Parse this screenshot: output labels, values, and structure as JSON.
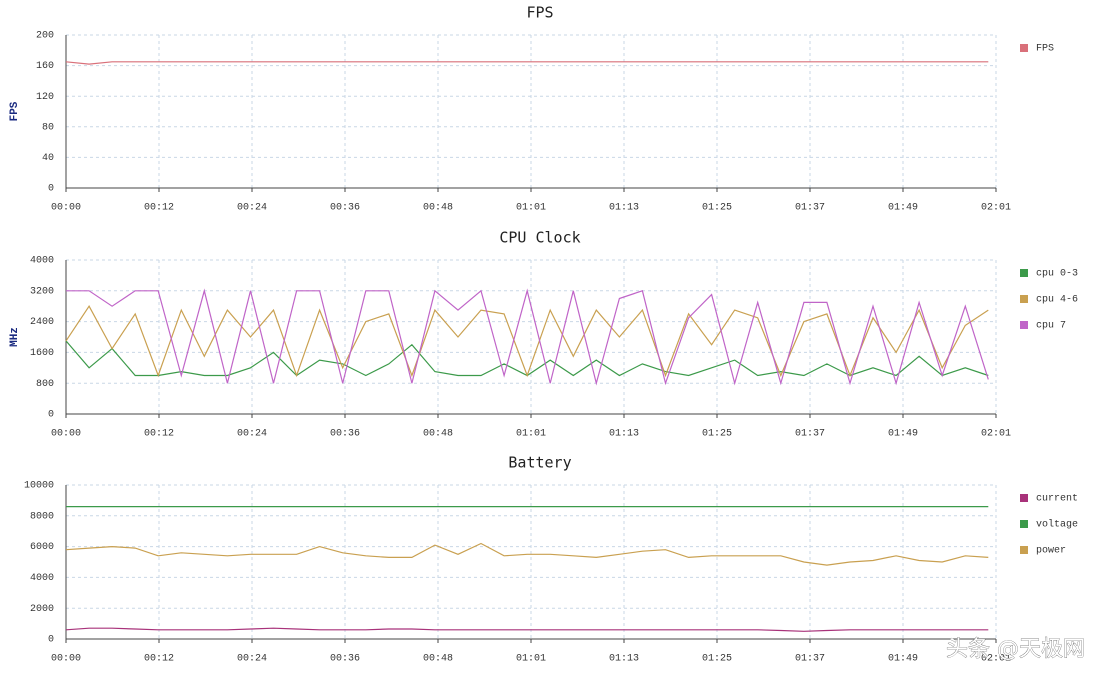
{
  "watermark": "头条 @天极网",
  "chart_data": [
    {
      "type": "line",
      "title": "FPS",
      "y_label": "FPS",
      "x": [
        0,
        3,
        6,
        9,
        12,
        15,
        18,
        21,
        24,
        27,
        30,
        33,
        36,
        39,
        42,
        45,
        48,
        51,
        54,
        57,
        60,
        63,
        66,
        69,
        72,
        75,
        78,
        81,
        84,
        87,
        90,
        93,
        96,
        99,
        102,
        105,
        108,
        111,
        114,
        117,
        120
      ],
      "xlim": [
        0,
        121
      ],
      "xticks": [
        {
          "value": 0,
          "label": "00:00"
        },
        {
          "value": 12.1,
          "label": "00:12"
        },
        {
          "value": 24.2,
          "label": "00:24"
        },
        {
          "value": 36.3,
          "label": "00:36"
        },
        {
          "value": 48.4,
          "label": "00:48"
        },
        {
          "value": 60.5,
          "label": "01:01"
        },
        {
          "value": 72.6,
          "label": "01:13"
        },
        {
          "value": 84.7,
          "label": "01:25"
        },
        {
          "value": 96.8,
          "label": "01:37"
        },
        {
          "value": 108.9,
          "label": "01:49"
        },
        {
          "value": 121,
          "label": "02:01"
        }
      ],
      "ylim": [
        0,
        200
      ],
      "yticks": [
        0,
        40,
        80,
        120,
        160,
        200
      ],
      "grid": true,
      "series": [
        {
          "name": "FPS",
          "color": "#d9707a",
          "values": [
            165,
            162,
            165,
            165,
            165,
            165,
            165,
            165,
            165,
            165,
            165,
            165,
            165,
            165,
            165,
            165,
            165,
            165,
            165,
            165,
            165,
            165,
            165,
            165,
            165,
            165,
            165,
            165,
            165,
            165,
            165,
            165,
            165,
            165,
            165,
            165,
            165,
            165,
            165,
            165,
            165
          ]
        }
      ]
    },
    {
      "type": "line",
      "title": "CPU Clock",
      "y_label": "MHz",
      "x": [
        0,
        3,
        6,
        9,
        12,
        15,
        18,
        21,
        24,
        27,
        30,
        33,
        36,
        39,
        42,
        45,
        48,
        51,
        54,
        57,
        60,
        63,
        66,
        69,
        72,
        75,
        78,
        81,
        84,
        87,
        90,
        93,
        96,
        99,
        102,
        105,
        108,
        111,
        114,
        117,
        120
      ],
      "xlim": [
        0,
        121
      ],
      "xticks": [
        {
          "value": 0,
          "label": "00:00"
        },
        {
          "value": 12.1,
          "label": "00:12"
        },
        {
          "value": 24.2,
          "label": "00:24"
        },
        {
          "value": 36.3,
          "label": "00:36"
        },
        {
          "value": 48.4,
          "label": "00:48"
        },
        {
          "value": 60.5,
          "label": "01:01"
        },
        {
          "value": 72.6,
          "label": "01:13"
        },
        {
          "value": 84.7,
          "label": "01:25"
        },
        {
          "value": 96.8,
          "label": "01:37"
        },
        {
          "value": 108.9,
          "label": "01:49"
        },
        {
          "value": 121,
          "label": "02:01"
        }
      ],
      "ylim": [
        0,
        4000
      ],
      "yticks": [
        0,
        800,
        1600,
        2400,
        3200,
        4000
      ],
      "grid": true,
      "series": [
        {
          "name": "cpu 0-3",
          "color": "#3c9a4a",
          "values": [
            1900,
            1200,
            1700,
            1000,
            1000,
            1100,
            1000,
            1000,
            1200,
            1600,
            1000,
            1400,
            1300,
            1000,
            1300,
            1800,
            1100,
            1000,
            1000,
            1300,
            1000,
            1400,
            1000,
            1400,
            1000,
            1300,
            1100,
            1000,
            1200,
            1400,
            1000,
            1100,
            1000,
            1300,
            1000,
            1200,
            1000,
            1500,
            1000,
            1200,
            1000
          ]
        },
        {
          "name": "cpu 4-6",
          "color": "#c9a050",
          "values": [
            1900,
            2800,
            1700,
            2600,
            1000,
            2700,
            1500,
            2700,
            2000,
            2700,
            1000,
            2700,
            1200,
            2400,
            2600,
            1000,
            2700,
            2000,
            2700,
            2600,
            1000,
            2700,
            1500,
            2700,
            2000,
            2700,
            1000,
            2600,
            1800,
            2700,
            2500,
            1000,
            2400,
            2600,
            1000,
            2500,
            1600,
            2700,
            1200,
            2300,
            2700
          ]
        },
        {
          "name": "cpu 7",
          "color": "#c065c8",
          "values": [
            3200,
            3200,
            2800,
            3200,
            3200,
            1000,
            3200,
            800,
            3200,
            800,
            3200,
            3200,
            800,
            3200,
            3200,
            800,
            3200,
            2700,
            3200,
            1000,
            3200,
            800,
            3200,
            800,
            3000,
            3200,
            800,
            2500,
            3100,
            800,
            2900,
            800,
            2900,
            2900,
            800,
            2800,
            800,
            2900,
            1000,
            2800,
            900
          ]
        }
      ]
    },
    {
      "type": "line",
      "title": "Battery",
      "x": [
        0,
        3,
        6,
        9,
        12,
        15,
        18,
        21,
        24,
        27,
        30,
        33,
        36,
        39,
        42,
        45,
        48,
        51,
        54,
        57,
        60,
        63,
        66,
        69,
        72,
        75,
        78,
        81,
        84,
        87,
        90,
        93,
        96,
        99,
        102,
        105,
        108,
        111,
        114,
        117,
        120
      ],
      "xlim": [
        0,
        121
      ],
      "xticks": [
        {
          "value": 0,
          "label": "00:00"
        },
        {
          "value": 12.1,
          "label": "00:12"
        },
        {
          "value": 24.2,
          "label": "00:24"
        },
        {
          "value": 36.3,
          "label": "00:36"
        },
        {
          "value": 48.4,
          "label": "00:48"
        },
        {
          "value": 60.5,
          "label": "01:01"
        },
        {
          "value": 72.6,
          "label": "01:13"
        },
        {
          "value": 84.7,
          "label": "01:25"
        },
        {
          "value": 96.8,
          "label": "01:37"
        },
        {
          "value": 108.9,
          "label": "01:49"
        },
        {
          "value": 121,
          "label": "02:01"
        }
      ],
      "ylim": [
        0,
        10000
      ],
      "yticks": [
        0,
        2000,
        4000,
        6000,
        8000,
        10000
      ],
      "grid": true,
      "series": [
        {
          "name": "current",
          "color": "#a8327a",
          "values": [
            600,
            700,
            700,
            650,
            600,
            600,
            600,
            600,
            650,
            700,
            650,
            600,
            600,
            600,
            650,
            650,
            600,
            600,
            600,
            600,
            600,
            600,
            600,
            600,
            600,
            600,
            600,
            600,
            600,
            600,
            600,
            550,
            500,
            550,
            600,
            600,
            600,
            600,
            600,
            600,
            600
          ]
        },
        {
          "name": "voltage",
          "color": "#3c9a4a",
          "values": [
            8600,
            8600,
            8600,
            8600,
            8600,
            8600,
            8600,
            8600,
            8600,
            8600,
            8600,
            8600,
            8600,
            8600,
            8600,
            8600,
            8600,
            8600,
            8600,
            8600,
            8600,
            8600,
            8600,
            8600,
            8600,
            8600,
            8600,
            8600,
            8600,
            8600,
            8600,
            8600,
            8600,
            8600,
            8600,
            8600,
            8600,
            8600,
            8600,
            8600,
            8600
          ]
        },
        {
          "name": "power",
          "color": "#c9a050",
          "values": [
            5800,
            5900,
            6000,
            5900,
            5400,
            5600,
            5500,
            5400,
            5500,
            5500,
            5500,
            6000,
            5600,
            5400,
            5300,
            5300,
            6100,
            5500,
            6200,
            5400,
            5500,
            5500,
            5400,
            5300,
            5500,
            5700,
            5800,
            5300,
            5400,
            5400,
            5400,
            5400,
            5000,
            4800,
            5000,
            5100,
            5400,
            5100,
            5000,
            5400,
            5300
          ]
        }
      ]
    }
  ]
}
